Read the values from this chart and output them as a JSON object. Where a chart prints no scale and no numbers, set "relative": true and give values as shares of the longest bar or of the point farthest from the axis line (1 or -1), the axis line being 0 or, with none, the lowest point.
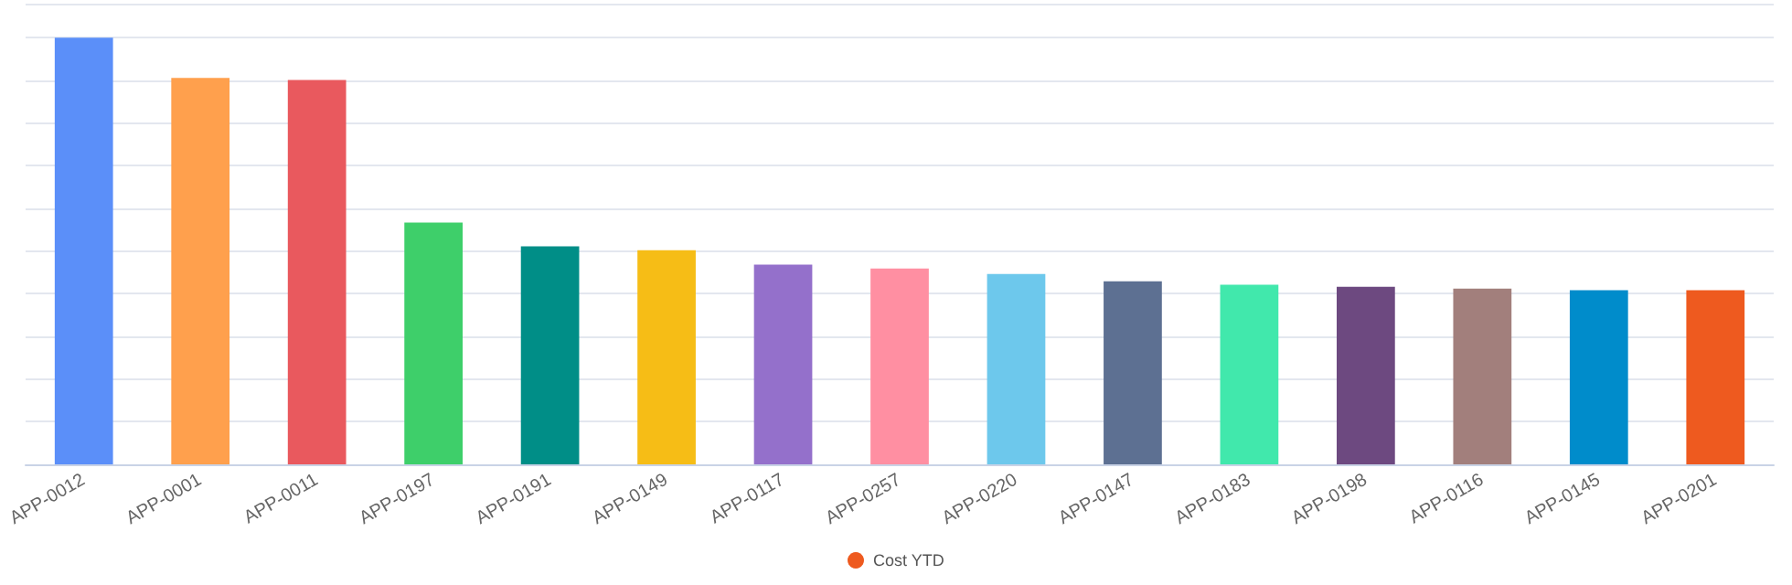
{
  "chart_data": {
    "type": "bar",
    "relative": true,
    "grid": "y",
    "legend": "bottom",
    "categories": [
      "APP-0012",
      "APP-0001",
      "APP-0011",
      "APP-0197",
      "APP-0191",
      "APP-0149",
      "APP-0117",
      "APP-0257",
      "APP-0220",
      "APP-0147",
      "APP-0183",
      "APP-0198",
      "APP-0116",
      "APP-0145",
      "APP-0201"
    ],
    "series": [
      {
        "name": "Cost YTD",
        "values": [
          1,
          0.906,
          0.901,
          0.567,
          0.511,
          0.502,
          0.468,
          0.459,
          0.446,
          0.429,
          0.421,
          0.416,
          0.412,
          0.408,
          0.408
        ],
        "colors": [
          "#5b8ff9",
          "#ffa04d",
          "#e9595e",
          "#3ecf6a",
          "#008e87",
          "#f6bd16",
          "#9470cb",
          "#ff8fa2",
          "#6dc8ec",
          "#5d7092",
          "#41e8ac",
          "#6d4980",
          "#a27f7c",
          "#008ccb",
          "#ee5a1f"
        ]
      }
    ]
  }
}
